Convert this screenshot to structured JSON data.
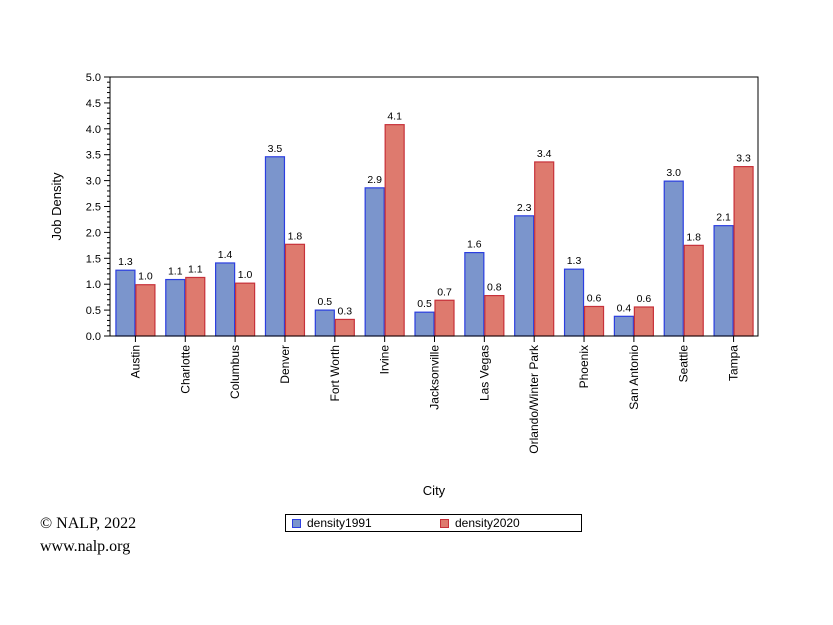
{
  "chart_data": {
    "type": "bar",
    "title": "",
    "xlabel": "City",
    "ylabel": "Job Density",
    "ylim": [
      0,
      5.0
    ],
    "yticks": [
      "0.0",
      "0.5",
      "1.0",
      "1.5",
      "2.0",
      "2.5",
      "3.0",
      "3.5",
      "4.0",
      "4.5",
      "5.0"
    ],
    "grid": false,
    "legend_position": "bottom",
    "categories": [
      "Austin",
      "Charlotte",
      "Columbus",
      "Denver",
      "Fort Worth",
      "Irvine",
      "Jacksonville",
      "Las Vegas",
      "Orlando/Winter Park",
      "Phoenix",
      "San Antonio",
      "Seattle",
      "Tampa"
    ],
    "series": [
      {
        "name": "density1991",
        "color": "#7b95cc",
        "edge": "#2b3ee0",
        "values": [
          1.27,
          1.09,
          1.41,
          3.46,
          0.5,
          2.86,
          0.46,
          1.61,
          2.32,
          1.29,
          0.38,
          2.99,
          2.13
        ],
        "labels": [
          "1.3",
          "1.1",
          "1.4",
          "3.5",
          "0.5",
          "2.9",
          "0.5",
          "1.6",
          "2.3",
          "1.3",
          "0.4",
          "3.0",
          "2.1"
        ]
      },
      {
        "name": "density2020",
        "color": "#de7a6e",
        "edge": "#c7313a",
        "values": [
          0.99,
          1.13,
          1.02,
          1.77,
          0.32,
          4.08,
          0.69,
          0.78,
          3.36,
          0.57,
          0.56,
          1.75,
          3.27
        ],
        "labels": [
          "1.0",
          "1.1",
          "1.0",
          "1.8",
          "0.3",
          "4.1",
          "0.7",
          "0.8",
          "3.4",
          "0.6",
          "0.6",
          "1.8",
          "3.3"
        ]
      }
    ]
  },
  "footer": {
    "copyright": "© NALP, 2022",
    "url": "www.nalp.org"
  }
}
